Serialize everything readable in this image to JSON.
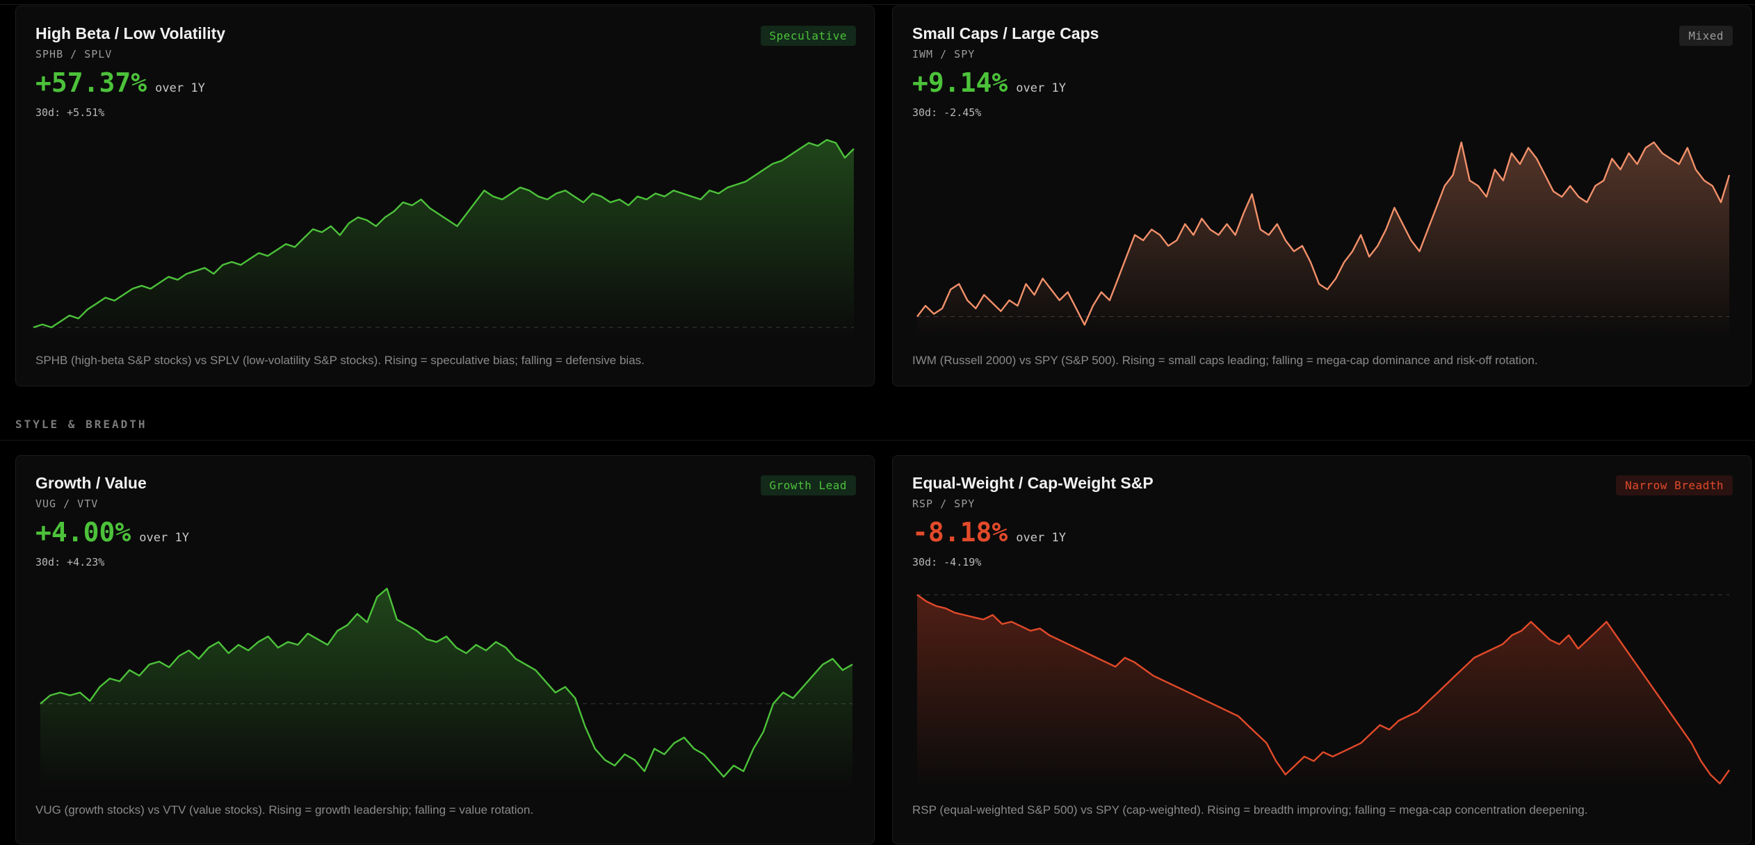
{
  "section": {
    "style_breadth": "STYLE & BREADTH"
  },
  "cards": [
    {
      "title": "High Beta / Low Volatility",
      "tickers": "SPHB / SPLV",
      "badge": "Speculative",
      "badge_tone": "green",
      "change": "+57.37%",
      "change_tone": "pos",
      "period": "over 1Y",
      "thirty_day": "30d: +5.51%",
      "description": "SPHB (high-beta S&P stocks) vs SPLV (low-volatility S&P stocks). Rising = speculative bias; falling = defensive bias.",
      "line_color": "#4cc23a"
    },
    {
      "title": "Small Caps / Large Caps",
      "tickers": "IWM / SPY",
      "badge": "Mixed",
      "badge_tone": "gray",
      "change": "+9.14%",
      "change_tone": "pos",
      "period": "over 1Y",
      "thirty_day": "30d: -2.45%",
      "description": "IWM (Russell 2000) vs SPY (S&P 500). Rising = small caps leading; falling = mega-cap dominance and risk-off rotation.",
      "line_color": "#f2906a"
    },
    {
      "title": "Growth / Value",
      "tickers": "VUG / VTV",
      "badge": "Growth Lead",
      "badge_tone": "green",
      "change": "+4.00%",
      "change_tone": "pos",
      "period": "over 1Y",
      "thirty_day": "30d: +4.23%",
      "description": "VUG (growth stocks) vs VTV (value stocks). Rising = growth leadership; falling = value rotation.",
      "line_color": "#4cc23a"
    },
    {
      "title": "Equal-Weight / Cap-Weight S&P",
      "tickers": "RSP / SPY",
      "badge": "Narrow Breadth",
      "badge_tone": "red",
      "change": "-8.18%",
      "change_tone": "neg",
      "period": "over 1Y",
      "thirty_day": "30d: -4.19%",
      "description": "RSP (equal-weighted S&P 500) vs SPY (cap-weighted). Rising = breadth improving; falling = mega-cap concentration deepening.",
      "line_color": "#e24a2a"
    }
  ],
  "chart_data": [
    {
      "type": "area",
      "ratio": "SPHB / SPLV",
      "baseline": 0,
      "ylim": [
        -3,
        64
      ],
      "values": [
        0,
        1,
        0,
        2,
        4,
        3,
        6,
        8,
        10,
        9,
        11,
        13,
        14,
        13,
        15,
        17,
        16,
        18,
        19,
        20,
        18,
        21,
        22,
        21,
        23,
        25,
        24,
        26,
        28,
        27,
        30,
        33,
        32,
        34,
        31,
        35,
        37,
        36,
        34,
        37,
        39,
        42,
        41,
        43,
        40,
        38,
        36,
        34,
        38,
        42,
        46,
        44,
        43,
        45,
        47,
        46,
        44,
        43,
        45,
        46,
        44,
        42,
        45,
        44,
        42,
        43,
        41,
        44,
        43,
        45,
        44,
        46,
        45,
        44,
        43,
        46,
        45,
        47,
        48,
        49,
        51,
        53,
        55,
        56,
        58,
        60,
        62,
        61,
        63,
        62,
        57,
        60
      ]
    },
    {
      "type": "area",
      "ratio": "IWM / SPY",
      "baseline": 0,
      "ylim": [
        -8,
        66
      ],
      "values": [
        0,
        4,
        1,
        3,
        10,
        12,
        6,
        3,
        8,
        5,
        2,
        6,
        4,
        12,
        8,
        14,
        10,
        6,
        9,
        3,
        -3,
        4,
        9,
        6,
        14,
        22,
        30,
        28,
        32,
        30,
        26,
        28,
        34,
        30,
        36,
        32,
        30,
        34,
        30,
        38,
        45,
        32,
        30,
        34,
        28,
        24,
        26,
        20,
        12,
        10,
        14,
        20,
        24,
        30,
        22,
        26,
        32,
        40,
        34,
        28,
        24,
        32,
        40,
        48,
        52,
        64,
        50,
        48,
        44,
        54,
        50,
        60,
        56,
        62,
        58,
        52,
        46,
        44,
        48,
        44,
        42,
        48,
        50,
        58,
        54,
        60,
        56,
        62,
        64,
        60,
        58,
        56,
        62,
        54,
        50,
        48,
        42,
        52
      ]
    },
    {
      "type": "area",
      "ratio": "VUG / VTV",
      "baseline": 0,
      "ylim": [
        -30,
        42
      ],
      "values": [
        0,
        3,
        4,
        3,
        4,
        1,
        6,
        9,
        8,
        12,
        10,
        14,
        15,
        13,
        17,
        19,
        16,
        20,
        22,
        18,
        21,
        19,
        22,
        24,
        20,
        22,
        21,
        25,
        23,
        21,
        26,
        28,
        32,
        29,
        38,
        41,
        30,
        28,
        26,
        23,
        22,
        24,
        20,
        18,
        21,
        19,
        22,
        20,
        16,
        14,
        12,
        8,
        4,
        6,
        2,
        -8,
        -16,
        -20,
        -22,
        -18,
        -20,
        -24,
        -16,
        -18,
        -14,
        -12,
        -16,
        -18,
        -22,
        -26,
        -22,
        -24,
        -16,
        -10,
        0,
        4,
        2,
        6,
        10,
        14,
        16,
        12,
        14
      ]
    },
    {
      "type": "area",
      "ratio": "RSP / SPY",
      "baseline": 0,
      "ylim": [
        -86,
        4
      ],
      "values": [
        0,
        -3,
        -5,
        -6,
        -8,
        -9,
        -10,
        -11,
        -9,
        -13,
        -12,
        -14,
        -16,
        -15,
        -18,
        -20,
        -22,
        -24,
        -26,
        -28,
        -30,
        -32,
        -28,
        -30,
        -33,
        -36,
        -38,
        -40,
        -42,
        -44,
        -46,
        -48,
        -50,
        -52,
        -54,
        -58,
        -62,
        -66,
        -74,
        -80,
        -76,
        -72,
        -74,
        -70,
        -72,
        -70,
        -68,
        -66,
        -62,
        -58,
        -60,
        -56,
        -54,
        -52,
        -48,
        -44,
        -40,
        -36,
        -32,
        -28,
        -26,
        -24,
        -22,
        -18,
        -16,
        -12,
        -16,
        -20,
        -22,
        -18,
        -24,
        -20,
        -16,
        -12,
        -18,
        -24,
        -30,
        -36,
        -42,
        -48,
        -54,
        -60,
        -66,
        -74,
        -80,
        -84,
        -78
      ]
    }
  ]
}
